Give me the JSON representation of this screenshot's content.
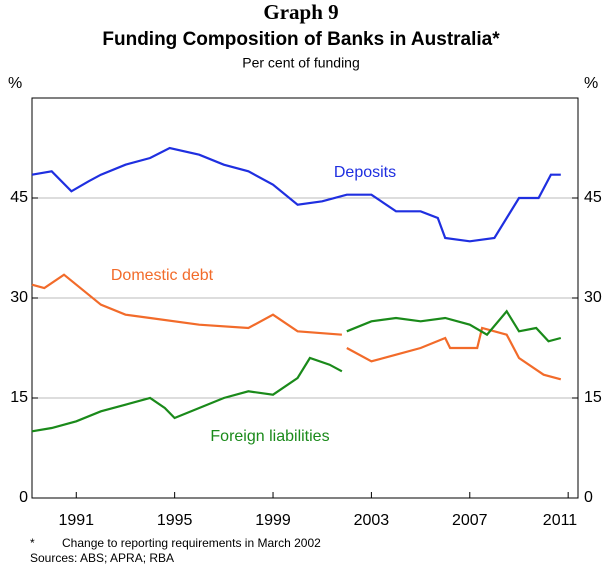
{
  "chart_data": {
    "type": "line",
    "title": "Graph 9",
    "subtitle": "Funding Composition of Banks in Australia*",
    "y_label": "Per cent of funding",
    "y_unit": "%",
    "xlim": [
      1989.2,
      2011.4
    ],
    "xticks": [
      1991,
      1995,
      1999,
      2003,
      2007,
      2011
    ],
    "ylim": [
      0,
      60
    ],
    "yticks": [
      0,
      15,
      30,
      45
    ],
    "y2lim": [
      0,
      60
    ],
    "y2ticks": [
      0,
      15,
      30,
      45
    ],
    "grid": true,
    "series": [
      {
        "name": "Deposits",
        "color": "#1f2fe0",
        "x": [
          1989.2,
          1990,
          1990.8,
          1991.5,
          1992,
          1993,
          1994,
          1994.8,
          1996,
          1997,
          1998,
          1999,
          2000,
          2001,
          2002,
          2003,
          2004,
          2005,
          2005.7,
          2006,
          2007,
          2008,
          2009,
          2009.8,
          2010.3,
          2010.7
        ],
        "values": [
          48.5,
          49,
          46,
          47.5,
          48.5,
          50,
          51,
          52.5,
          51.5,
          50,
          49,
          47,
          44,
          44.5,
          45.5,
          45.5,
          43,
          43,
          42,
          39,
          38.5,
          39,
          45,
          45,
          48.5,
          48.5
        ]
      },
      {
        "name": "Domestic debt",
        "color": "#f26b2a",
        "x": [
          1989.2,
          1989.7,
          1990.5,
          1991,
          1991.5,
          1992,
          1993,
          1994,
          1996,
          1998,
          1999,
          2000,
          2001.8,
          2001.9,
          2002,
          2003,
          2004,
          2005,
          2006,
          2006.2,
          2007.3,
          2007.5,
          2008.5,
          2009,
          2010,
          2010.7
        ],
        "values": [
          32,
          31.5,
          33.5,
          32,
          30.5,
          29,
          27.5,
          27,
          26,
          25.5,
          27.5,
          25,
          24.5,
          null,
          22.5,
          20.5,
          21.5,
          22.5,
          24,
          22.5,
          22.5,
          25.5,
          24.5,
          21,
          18.5,
          17.8
        ]
      },
      {
        "name": "Foreign liabilities",
        "color": "#1a8a1a",
        "x": [
          1989.2,
          1990,
          1991,
          1992,
          1993,
          1994,
          1994.6,
          1995,
          1996,
          1997,
          1998,
          1999,
          2000,
          2000.5,
          2001.3,
          2001.8,
          2001.9,
          2002,
          2003,
          2004,
          2005,
          2006,
          2007,
          2007.7,
          2008.5,
          2009,
          2009.7,
          2010.2,
          2010.7
        ],
        "values": [
          10,
          10.5,
          11.5,
          13,
          14,
          15,
          13.5,
          12,
          13.5,
          15,
          16,
          15.5,
          18,
          21,
          20,
          19,
          null,
          25,
          26.5,
          27,
          26.5,
          27,
          26,
          24.5,
          28,
          25,
          25.5,
          23.5,
          24
        ]
      }
    ],
    "footnote": "Change to reporting requirements in March 2002",
    "footnote_mark": "*",
    "source": "Sources: ABS; APRA; RBA"
  }
}
